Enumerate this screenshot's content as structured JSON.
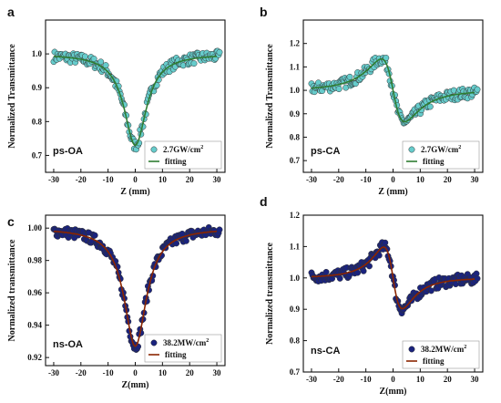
{
  "chart_data": [
    {
      "type": "scatter",
      "panel_letter": "a",
      "tag": "ps-OA",
      "xlabel": "Z (mm)",
      "ylabel": "Normalized Transmittance",
      "xlim": [
        -33,
        33
      ],
      "ylim": [
        0.65,
        1.1
      ],
      "xticks": [
        -30,
        -20,
        -10,
        0,
        10,
        20,
        30
      ],
      "yticks": [
        0.7,
        0.8,
        0.9,
        1.0
      ],
      "ytick_labels": [
        "0.7",
        "0.8",
        "0.9",
        "1.0"
      ],
      "legend_position": "bottom-right",
      "marker_color": "#66cccc",
      "fit_color": "#2e7d32",
      "series": [
        {
          "name": "2.7GW/cm",
          "name_sup": "2",
          "kind": "points",
          "model": {
            "form": "oa",
            "base": 1.0,
            "depth": 0.27,
            "z0": 5
          }
        },
        {
          "name": "fitting",
          "kind": "line",
          "model": {
            "form": "oa",
            "base": 1.0,
            "depth": 0.27,
            "z0": 5
          }
        }
      ]
    },
    {
      "type": "scatter",
      "panel_letter": "b",
      "tag": "ps-CA",
      "xlabel": "Z (mm)",
      "ylabel": "Normalized Transmittance",
      "xlim": [
        -33,
        33
      ],
      "ylim": [
        0.65,
        1.3
      ],
      "xticks": [
        -30,
        -20,
        -10,
        0,
        10,
        20,
        30
      ],
      "yticks": [
        0.7,
        0.8,
        0.9,
        1.0,
        1.1,
        1.2
      ],
      "ytick_labels": [
        "0.7",
        "0.8",
        "0.9",
        "1.0",
        "1.1",
        "1.2"
      ],
      "legend_position": "bottom-right",
      "marker_color": "#66cccc",
      "fit_color": "#2e7d32",
      "series": [
        {
          "name": "2.7GW/cm",
          "name_sup": "2",
          "kind": "points",
          "model": {
            "form": "ca",
            "base": 1.0,
            "amp": 0.3,
            "z0": 5
          }
        },
        {
          "name": "fitting",
          "kind": "line",
          "model": {
            "form": "ca",
            "base": 1.0,
            "amp": 0.3,
            "z0": 5
          }
        }
      ]
    },
    {
      "type": "scatter",
      "panel_letter": "c",
      "tag": "ns-OA",
      "xlabel": "Z(mm)",
      "ylabel": "Normalized transmittance",
      "xlim": [
        -33,
        33
      ],
      "ylim": [
        0.915,
        1.008
      ],
      "xticks": [
        -30,
        -20,
        -10,
        0,
        10,
        20,
        30
      ],
      "yticks": [
        0.92,
        0.94,
        0.96,
        0.98,
        1.0
      ],
      "ytick_labels": [
        "0.92",
        "0.94",
        "0.96",
        "0.98",
        "1.00"
      ],
      "legend_position": "bottom-right",
      "marker_color": "#1a237e",
      "fit_color": "#8b2500",
      "series": [
        {
          "name": "38.2MW/cm",
          "name_sup": "2",
          "kind": "points",
          "model": {
            "form": "oa",
            "base": 1.0,
            "depth": 0.073,
            "z0": 5
          }
        },
        {
          "name": "fitting",
          "kind": "line",
          "model": {
            "form": "oa",
            "base": 1.0,
            "depth": 0.073,
            "z0": 5
          }
        }
      ]
    },
    {
      "type": "scatter",
      "panel_letter": "d",
      "tag": "ns-CA",
      "xlabel": "Z(mm)",
      "ylabel": "Normalized transmittance",
      "xlim": [
        -33,
        33
      ],
      "ylim": [
        0.7,
        1.2
      ],
      "xticks": [
        -30,
        -20,
        -10,
        0,
        10,
        20,
        30
      ],
      "yticks": [
        0.7,
        0.8,
        0.9,
        1.0,
        1.1,
        1.2
      ],
      "ytick_labels": [
        "0.7",
        "0.8",
        "0.9",
        "1.0",
        "1.1",
        "1.2"
      ],
      "legend_position": "bottom-right",
      "marker_color": "#1a237e",
      "fit_color": "#8b2500",
      "series": [
        {
          "name": "38.2MW/cm",
          "name_sup": "2",
          "kind": "points",
          "model": {
            "form": "ca",
            "base": 1.0,
            "amp": 0.22,
            "z0": 4
          }
        },
        {
          "name": "fitting",
          "kind": "line",
          "model": {
            "form": "ca",
            "base": 1.0,
            "amp": 0.22,
            "z0": 4
          }
        }
      ]
    }
  ]
}
